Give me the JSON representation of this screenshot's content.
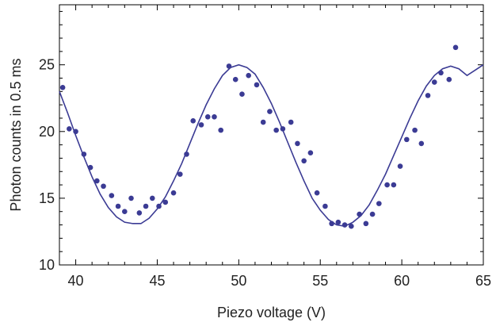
{
  "chart_data": {
    "type": "scatter",
    "title": "",
    "xlabel": "Piezo voltage (V)",
    "ylabel": "Photon counts in 0.5 ms",
    "xlim": [
      39,
      65
    ],
    "ylim": [
      10,
      29.5
    ],
    "grid": false,
    "legend": "none",
    "x_ticks": [
      40,
      45,
      50,
      55,
      60,
      65
    ],
    "y_ticks": [
      10,
      15,
      20,
      25
    ],
    "x_tick_labels": [
      "40",
      "45",
      "50",
      "55",
      "60",
      "65"
    ],
    "y_tick_labels": [
      "10",
      "15",
      "20",
      "25"
    ],
    "colors": {
      "series": "#3b3b94",
      "axis": "#000000"
    },
    "series": [
      {
        "kind": "points",
        "points": [
          [
            39.2,
            23.3
          ],
          [
            39.6,
            20.2
          ],
          [
            40.0,
            20.0
          ],
          [
            40.5,
            18.3
          ],
          [
            40.9,
            17.3
          ],
          [
            41.3,
            16.3
          ],
          [
            41.7,
            15.9
          ],
          [
            42.2,
            15.2
          ],
          [
            42.6,
            14.4
          ],
          [
            43.0,
            14.0
          ],
          [
            43.4,
            15.0
          ],
          [
            43.9,
            13.9
          ],
          [
            44.3,
            14.4
          ],
          [
            44.7,
            15.0
          ],
          [
            45.1,
            14.4
          ],
          [
            45.5,
            14.7
          ],
          [
            46.0,
            15.4
          ],
          [
            46.4,
            16.8
          ],
          [
            46.8,
            18.3
          ],
          [
            47.2,
            20.8
          ],
          [
            47.7,
            20.5
          ],
          [
            48.1,
            21.1
          ],
          [
            48.5,
            21.1
          ],
          [
            48.9,
            20.1
          ],
          [
            49.4,
            24.9
          ],
          [
            49.8,
            23.9
          ],
          [
            50.2,
            22.8
          ],
          [
            50.6,
            24.2
          ],
          [
            51.1,
            23.5
          ],
          [
            51.5,
            20.7
          ],
          [
            51.9,
            21.5
          ],
          [
            52.3,
            20.1
          ],
          [
            52.7,
            20.2
          ],
          [
            53.2,
            20.7
          ],
          [
            53.6,
            19.1
          ],
          [
            54.0,
            17.8
          ],
          [
            54.4,
            18.4
          ],
          [
            54.8,
            15.4
          ],
          [
            55.3,
            14.4
          ],
          [
            55.7,
            13.1
          ],
          [
            56.1,
            13.2
          ],
          [
            56.5,
            13.0
          ],
          [
            56.9,
            12.9
          ],
          [
            57.4,
            13.8
          ],
          [
            57.8,
            13.1
          ],
          [
            58.2,
            13.8
          ],
          [
            58.6,
            14.6
          ],
          [
            59.1,
            16.0
          ],
          [
            59.5,
            16.0
          ],
          [
            59.9,
            17.4
          ],
          [
            60.3,
            19.4
          ],
          [
            60.8,
            20.1
          ],
          [
            61.2,
            19.1
          ],
          [
            61.6,
            22.7
          ],
          [
            62.0,
            23.7
          ],
          [
            62.4,
            24.4
          ],
          [
            62.9,
            23.9
          ],
          [
            63.3,
            26.3
          ]
        ]
      },
      {
        "kind": "fit",
        "x": [
          39,
          39.5,
          40,
          40.5,
          41,
          41.5,
          42,
          42.5,
          43,
          43.5,
          44,
          44.5,
          45,
          45.5,
          46,
          46.5,
          47,
          47.5,
          48,
          48.5,
          49,
          49.5,
          50,
          50.5,
          51,
          51.5,
          52,
          52.5,
          53,
          53.5,
          54,
          54.5,
          55,
          55.5,
          56,
          56.5,
          57,
          57.5,
          58,
          58.5,
          59,
          59.5,
          60,
          60.5,
          61,
          61.5,
          62,
          62.5,
          63,
          63.5,
          64,
          64.5,
          65
        ],
        "y": [
          23.0,
          21.4,
          19.7,
          18.1,
          16.6,
          15.3,
          14.3,
          13.6,
          13.2,
          13.1,
          13.1,
          13.5,
          14.2,
          15.1,
          16.3,
          17.6,
          19.1,
          20.6,
          22.0,
          23.2,
          24.2,
          24.8,
          25.0,
          24.8,
          24.3,
          23.3,
          22.1,
          20.7,
          19.2,
          17.7,
          16.3,
          15.0,
          14.1,
          13.4,
          13.0,
          12.9,
          13.2,
          13.7,
          14.5,
          15.6,
          16.8,
          18.2,
          19.6,
          21.0,
          22.3,
          23.4,
          24.2,
          24.7,
          24.9,
          24.7,
          24.2,
          24.6,
          25.0
        ]
      }
    ]
  }
}
